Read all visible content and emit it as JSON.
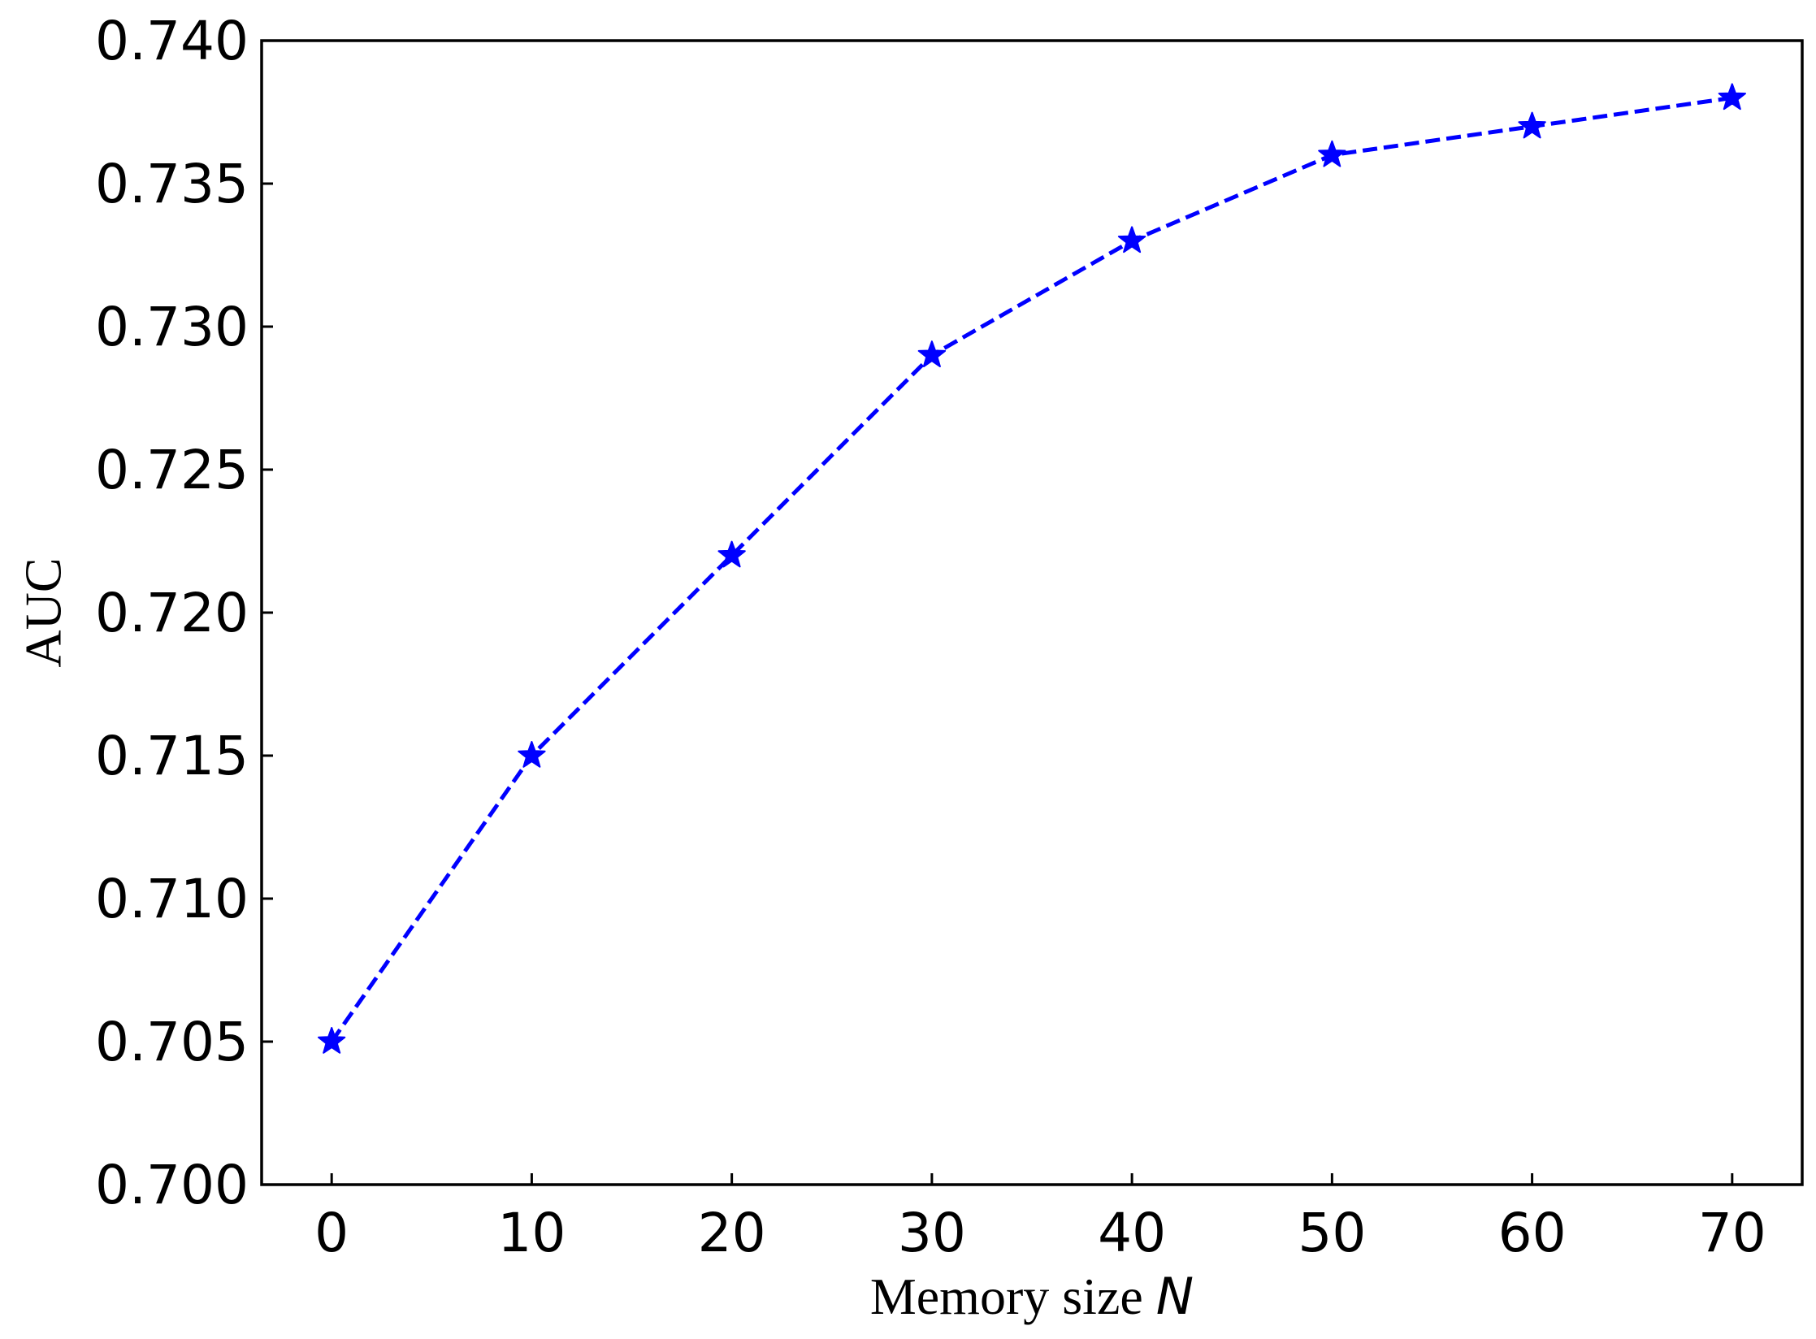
{
  "chart_data": {
    "type": "line",
    "xlabel": "Memory size ",
    "xlabel_var": "N",
    "ylabel": "AUC",
    "xlim": [
      -3.5,
      73.5
    ],
    "ylim": [
      0.7,
      0.74
    ],
    "xticks": [
      0,
      10,
      20,
      30,
      40,
      50,
      60,
      70
    ],
    "yticks": [
      0.7,
      0.705,
      0.71,
      0.715,
      0.72,
      0.725,
      0.73,
      0.735,
      0.74
    ],
    "xtick_labels": [
      "0",
      "10",
      "20",
      "30",
      "40",
      "50",
      "60",
      "70"
    ],
    "ytick_labels": [
      "0.700",
      "0.705",
      "0.710",
      "0.715",
      "0.720",
      "0.725",
      "0.730",
      "0.735",
      "0.740"
    ],
    "grid": false,
    "tick_direction": "in",
    "series": [
      {
        "x": [
          0,
          10,
          20,
          30,
          40,
          50,
          60,
          70
        ],
        "values": [
          0.705,
          0.715,
          0.722,
          0.729,
          0.733,
          0.736,
          0.737,
          0.738
        ],
        "color": "#0000ff",
        "line_style": "dashed",
        "marker": "star"
      }
    ]
  }
}
